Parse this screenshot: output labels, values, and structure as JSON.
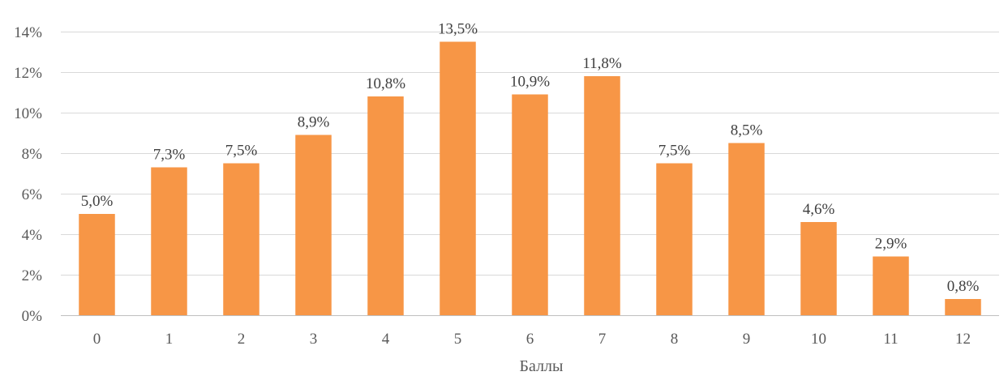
{
  "chart_data": {
    "type": "bar",
    "categories": [
      "0",
      "1",
      "2",
      "3",
      "4",
      "5",
      "6",
      "7",
      "8",
      "9",
      "10",
      "11",
      "12"
    ],
    "values": [
      5.0,
      7.3,
      7.5,
      8.9,
      10.8,
      13.5,
      10.9,
      11.8,
      7.5,
      8.5,
      4.6,
      2.9,
      0.8
    ],
    "data_labels": [
      "5,0%",
      "7,3%",
      "7,5%",
      "8,9%",
      "10,8%",
      "13,5%",
      "10,9%",
      "11,8%",
      "7,5%",
      "8,5%",
      "4,6%",
      "2,9%",
      "0,8%"
    ],
    "title": "",
    "xlabel": "Баллы",
    "ylabel": "",
    "ylim": [
      0,
      14
    ],
    "y_ticks": [
      0,
      2,
      4,
      6,
      8,
      10,
      12,
      14
    ],
    "y_tick_labels": [
      "0%",
      "2%",
      "4%",
      "6%",
      "8%",
      "10%",
      "12%",
      "14%"
    ],
    "grid": true,
    "legend": "none",
    "colors": {
      "bar": "#F79646"
    }
  }
}
